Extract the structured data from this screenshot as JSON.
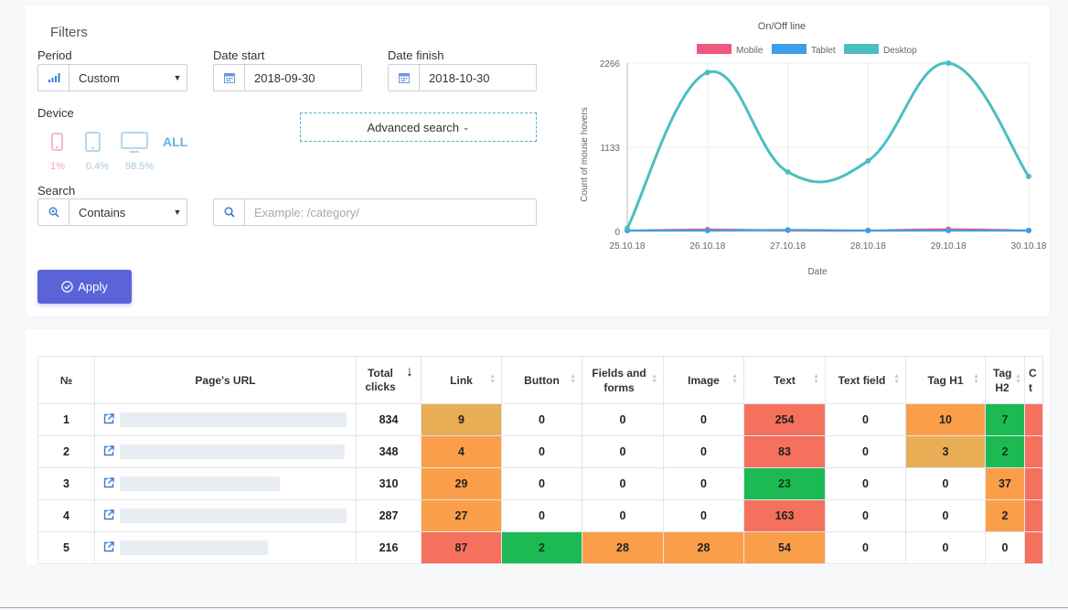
{
  "filters": {
    "title": "Filters",
    "period": {
      "label": "Period",
      "value": "Custom"
    },
    "date_start": {
      "label": "Date start",
      "value": "2018-09-30"
    },
    "date_finish": {
      "label": "Date finish",
      "value": "2018-10-30"
    },
    "device": {
      "label": "Device",
      "all_label": "ALL",
      "mobile_pct": "1%",
      "tablet_pct": "0.4%",
      "desktop_pct": "98.5%"
    },
    "advanced_search": "Advanced search",
    "search": {
      "label": "Search",
      "mode": "Contains",
      "placeholder": "Example: /category/"
    },
    "apply": "Apply"
  },
  "colors": {
    "accent": "#5b63d9",
    "mobile": "#f0577f",
    "tablet": "#3a9fe8",
    "desktop": "#4bbfc0",
    "heat_green": "#1db954",
    "heat_red": "#f5715e",
    "heat_orange": "#fb9e4a",
    "heat_gold": "#e8a94f"
  },
  "chart_data": {
    "type": "line",
    "title": "On/Off line",
    "xlabel": "Date",
    "ylabel": "Count of mouse hovers",
    "x": [
      "25.10.18",
      "26.10.18",
      "27.10.18",
      "28.10.18",
      "29.10.18",
      "30.10.18"
    ],
    "y_ticks": [
      "0",
      "1133",
      "2266"
    ],
    "ylim": [
      0,
      2266
    ],
    "legend_position": "top",
    "grid": true,
    "series": [
      {
        "name": "Mobile",
        "color": "#f0577f",
        "values": [
          0,
          25,
          15,
          10,
          30,
          5
        ]
      },
      {
        "name": "Tablet",
        "color": "#3a9fe8",
        "values": [
          0,
          5,
          20,
          5,
          10,
          0
        ]
      },
      {
        "name": "Desktop",
        "color": "#4bbfc0",
        "values": [
          40,
          2140,
          800,
          950,
          2266,
          740
        ]
      }
    ]
  },
  "table": {
    "columns": [
      "№",
      "Page's URL",
      "Total clicks",
      "Link",
      "Button",
      "Fields and forms",
      "Image",
      "Text",
      "Text field",
      "Tag H1",
      "Tag H2",
      "C t"
    ],
    "rows": [
      {
        "n": "1",
        "total": "834",
        "cells": [
          "9",
          "0",
          "0",
          "0",
          "254",
          "0",
          "10",
          "7"
        ]
      },
      {
        "n": "2",
        "total": "348",
        "cells": [
          "4",
          "0",
          "0",
          "0",
          "83",
          "0",
          "3",
          "2"
        ]
      },
      {
        "n": "3",
        "total": "310",
        "cells": [
          "29",
          "0",
          "0",
          "0",
          "23",
          "0",
          "0",
          "37"
        ]
      },
      {
        "n": "4",
        "total": "287",
        "cells": [
          "27",
          "0",
          "0",
          "0",
          "163",
          "0",
          "0",
          "2"
        ]
      },
      {
        "n": "5",
        "total": "216",
        "cells": [
          "87",
          "2",
          "28",
          "28",
          "54",
          "0",
          "0",
          "0"
        ]
      }
    ]
  }
}
